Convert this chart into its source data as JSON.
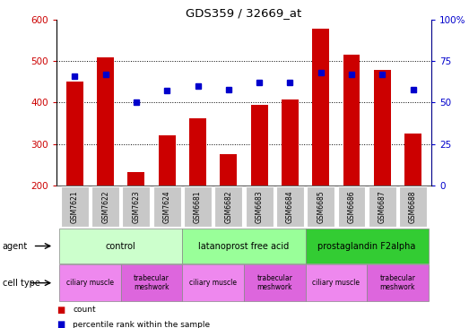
{
  "title": "GDS359 / 32669_at",
  "samples": [
    "GSM7621",
    "GSM7622",
    "GSM7623",
    "GSM7624",
    "GSM6681",
    "GSM6682",
    "GSM6683",
    "GSM6684",
    "GSM6685",
    "GSM6686",
    "GSM6687",
    "GSM6688"
  ],
  "counts": [
    450,
    510,
    233,
    320,
    362,
    275,
    395,
    408,
    578,
    515,
    478,
    325
  ],
  "percentiles": [
    66,
    67,
    50,
    57,
    60,
    58,
    62,
    62,
    68,
    67,
    67,
    58
  ],
  "ylim_left": [
    200,
    600
  ],
  "ylim_right": [
    0,
    100
  ],
  "yticks_left": [
    200,
    300,
    400,
    500,
    600
  ],
  "yticks_right": [
    0,
    25,
    50,
    75,
    100
  ],
  "ytick_labels_right": [
    "0",
    "25",
    "50",
    "75",
    "100%"
  ],
  "bar_color": "#cc0000",
  "dot_color": "#0000cc",
  "agent_groups": [
    {
      "label": "control",
      "start": 0,
      "end": 3,
      "color": "#ccffcc"
    },
    {
      "label": "latanoprost free acid",
      "start": 4,
      "end": 7,
      "color": "#99ff99"
    },
    {
      "label": "prostaglandin F2alpha",
      "start": 8,
      "end": 11,
      "color": "#33cc33"
    }
  ],
  "cell_type_groups": [
    {
      "label": "ciliary muscle",
      "start": 0,
      "end": 1,
      "color": "#ee88ee"
    },
    {
      "label": "trabecular\nmeshwork",
      "start": 2,
      "end": 3,
      "color": "#dd66dd"
    },
    {
      "label": "ciliary muscle",
      "start": 4,
      "end": 5,
      "color": "#ee88ee"
    },
    {
      "label": "trabecular\nmeshwork",
      "start": 6,
      "end": 7,
      "color": "#dd66dd"
    },
    {
      "label": "ciliary muscle",
      "start": 8,
      "end": 9,
      "color": "#ee88ee"
    },
    {
      "label": "trabecular\nmeshwork",
      "start": 10,
      "end": 11,
      "color": "#dd66dd"
    }
  ],
  "sample_box_color": "#c8c8c8",
  "tick_label_color_left": "#cc0000",
  "tick_label_color_right": "#0000cc"
}
